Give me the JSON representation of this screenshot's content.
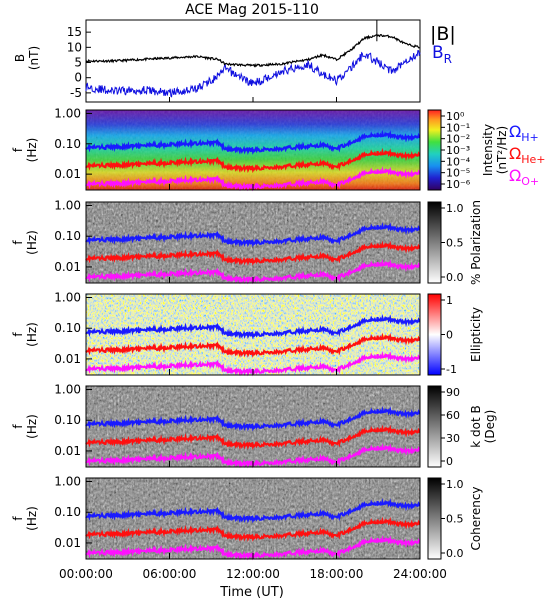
{
  "title": "ACE Mag 2015-110",
  "x_axis": {
    "label": "Time (UT)",
    "ticks": [
      "00:00:00",
      "06:00:00",
      "12:00:00",
      "18:00:00",
      "24:00:00"
    ],
    "range_hours": [
      0,
      24
    ]
  },
  "colors": {
    "b_total": "#000000",
    "b_r": "#1010e0",
    "h_plus": "#1a1aff",
    "he_plus": "#ff1010",
    "o_plus": "#ff10ff"
  },
  "legends": {
    "b_total": "|B|",
    "b_r_main": "B",
    "b_r_sub": "R",
    "omega": "Ω",
    "h_sub": "H+",
    "he_sub": "He+",
    "o_sub": "O+"
  },
  "chart_data": [
    {
      "type": "line",
      "panel": "magnetic field",
      "ylabel": "B",
      "yunit": "(nT)",
      "ylim": [
        -8,
        19
      ],
      "yticks": [
        "-5",
        "0",
        "5",
        "10",
        "15"
      ],
      "x_hours": [
        0,
        2,
        4,
        6,
        8,
        9.5,
        10,
        12,
        14,
        16,
        17,
        18,
        19,
        20,
        21,
        22,
        23,
        24
      ],
      "series": [
        {
          "name": "|B|",
          "values": [
            5.5,
            5.5,
            6.0,
            6.5,
            7.0,
            6.0,
            4.5,
            4.0,
            4.5,
            6.0,
            7.5,
            6.0,
            9.0,
            13.0,
            14.0,
            13.5,
            11.0,
            10.0
          ]
        },
        {
          "name": "BR",
          "values": [
            -3.0,
            -4.5,
            -4.0,
            -5.0,
            -3.5,
            0.5,
            3.0,
            -2.0,
            2.0,
            4.5,
            1.0,
            -1.0,
            3.0,
            8.0,
            5.0,
            2.0,
            6.0,
            8.0
          ]
        }
      ]
    },
    {
      "type": "heatmap",
      "panel": "intensity spectrogram",
      "ylabel": "f",
      "yunit": "(Hz)",
      "y_scale": "log",
      "ylim": [
        0.003,
        1.3
      ],
      "yticks": [
        "1.00",
        "0.10",
        "0.01"
      ],
      "colorbar": {
        "label": "Intensity",
        "unit": "(nT²/Hz)",
        "ticks": [
          "10⁰",
          "10⁻¹",
          "10⁻²",
          "10⁻³",
          "10⁻⁴",
          "10⁻⁵",
          "10⁻⁶"
        ]
      },
      "gyrofrequency_legend": [
        "ΩH+",
        "ΩHe+",
        "ΩO+"
      ]
    },
    {
      "type": "heatmap",
      "panel": "percent polarization",
      "ylabel": "f",
      "yunit": "(Hz)",
      "y_scale": "log",
      "ylim": [
        0.003,
        1.3
      ],
      "yticks": [
        "1.00",
        "0.10",
        "0.01"
      ],
      "colorbar": {
        "label": "% Polarization",
        "ticks": [
          "1.0",
          "0.5",
          "0.0"
        ]
      }
    },
    {
      "type": "heatmap",
      "panel": "ellipticity",
      "ylabel": "f",
      "yunit": "(Hz)",
      "y_scale": "log",
      "ylim": [
        0.003,
        1.3
      ],
      "yticks": [
        "1.00",
        "0.10",
        "0.01"
      ],
      "colorbar": {
        "label": "Ellipticity",
        "ticks": [
          "1",
          "0",
          "-1"
        ]
      }
    },
    {
      "type": "heatmap",
      "panel": "wave normal angle",
      "ylabel": "f",
      "yunit": "(Hz)",
      "y_scale": "log",
      "ylim": [
        0.003,
        1.3
      ],
      "yticks": [
        "1.00",
        "0.10",
        "0.01"
      ],
      "colorbar": {
        "label": "k dot B",
        "unit": "(Deg)",
        "ticks": [
          "90",
          "60",
          "30",
          "0"
        ]
      }
    },
    {
      "type": "heatmap",
      "panel": "coherency",
      "ylabel": "f",
      "yunit": "(Hz)",
      "y_scale": "log",
      "ylim": [
        0.003,
        1.3
      ],
      "yticks": [
        "1.00",
        "0.10",
        "0.01"
      ],
      "colorbar": {
        "label": "Coherency",
        "ticks": [
          "1.0",
          "0.5",
          "0.0"
        ]
      }
    },
    {
      "type": "line",
      "panel": "gyrofrequency overlays (all spectrogram panels)",
      "x_hours": [
        0,
        2,
        4,
        6,
        8,
        9.5,
        10,
        12,
        14,
        16,
        17,
        18,
        19,
        20,
        21,
        22,
        23,
        24
      ],
      "series": [
        {
          "name": "ΩH+",
          "values": [
            0.075,
            0.078,
            0.085,
            0.095,
            0.105,
            0.11,
            0.065,
            0.062,
            0.068,
            0.085,
            0.09,
            0.065,
            0.11,
            0.17,
            0.2,
            0.19,
            0.16,
            0.17
          ]
        },
        {
          "name": "ΩHe+",
          "values": [
            0.019,
            0.02,
            0.021,
            0.024,
            0.026,
            0.027,
            0.016,
            0.015,
            0.017,
            0.021,
            0.023,
            0.016,
            0.028,
            0.042,
            0.05,
            0.047,
            0.04,
            0.043
          ]
        },
        {
          "name": "ΩO+",
          "values": [
            0.0047,
            0.0049,
            0.0053,
            0.006,
            0.0066,
            0.0068,
            0.0041,
            0.0039,
            0.0043,
            0.0053,
            0.0057,
            0.0041,
            0.0069,
            0.0106,
            0.0125,
            0.0118,
            0.01,
            0.0107
          ]
        }
      ]
    }
  ]
}
